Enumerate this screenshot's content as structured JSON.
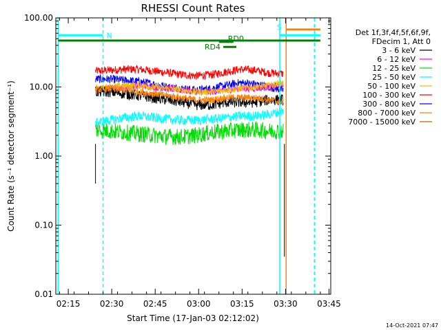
{
  "chart_data": {
    "type": "line",
    "title": "RHESSI Count Rates",
    "xlabel": "Start Time (17-Jan-03 02:12:02)",
    "ylabel": "Count Rate (s⁻¹ detector segment⁻¹)",
    "yscale": "log",
    "ylim": [
      0.01,
      100
    ],
    "xlim_minutes": [
      0,
      90
    ],
    "x_tick_labels": [
      "02:15",
      "02:30",
      "02:45",
      "03:00",
      "03:15",
      "03:30",
      "03:45"
    ],
    "x_tick_minutes": [
      3,
      18,
      33,
      48,
      63,
      78,
      93
    ],
    "y_tick_labels": [
      "0.01",
      "0.10",
      "1.00",
      "10.00",
      "100.00"
    ],
    "y_tick_values": [
      0.01,
      0.1,
      1,
      10,
      100
    ],
    "legend_header": [
      "Det 1f,3f,4f,5f,6f,9f,",
      "FDecim 1, Att 0"
    ],
    "legend": [
      {
        "label": "3 - 6 keV",
        "color": "#000000"
      },
      {
        "label": "6 - 12 keV",
        "color": "#ff00ff"
      },
      {
        "label": "12 - 25 keV",
        "color": "#00dd00"
      },
      {
        "label": "25 - 50 keV",
        "color": "#00ffff"
      },
      {
        "label": "50 - 100 keV",
        "color": "#f0c000"
      },
      {
        "label": "100 - 300 keV",
        "color": "#ff0000"
      },
      {
        "label": "300 - 800 keV",
        "color": "#0000ff"
      },
      {
        "label": "800 - 7000 keV",
        "color": "#ff8000"
      },
      {
        "label": "7000 - 15000 keV",
        "color": "#c06000"
      }
    ],
    "data_start_minute": 12.4,
    "data_end_minute": 77.3,
    "series": [
      {
        "name": "100 - 300 keV",
        "color": "#ff0000",
        "levels": [
          17,
          17.5,
          18,
          18,
          17,
          16,
          15,
          14.5,
          15,
          16.5,
          18,
          17.5,
          16,
          15.5
        ],
        "noise": 0.06
      },
      {
        "name": "300 - 800 keV",
        "color": "#0000ff",
        "levels": [
          13,
          13,
          12.5,
          12,
          11,
          10,
          9.5,
          9,
          9.5,
          10.5,
          11.5,
          11,
          10,
          9
        ],
        "noise": 0.06
      },
      {
        "name": "6 - 12 keV",
        "color": "#ff00ff",
        "levels": [
          9,
          9.5,
          10,
          10.5,
          10,
          9.5,
          9,
          8.5,
          8.5,
          9,
          9.5,
          9.5,
          10,
          11
        ],
        "noise": 0.05
      },
      {
        "name": "50 - 100 keV",
        "color": "#f0c000",
        "levels": [
          9.5,
          10,
          10.5,
          10.5,
          10,
          9.5,
          9,
          8.5,
          8.5,
          9,
          9.5,
          10,
          10.5,
          11.5
        ],
        "noise": 0.05
      },
      {
        "name": "3 - 6 keV",
        "color": "#000000",
        "levels": [
          8.5,
          8.5,
          8,
          7.5,
          7,
          6.5,
          6,
          5.5,
          5.5,
          6,
          6,
          6,
          6.5,
          6.5
        ],
        "noise": 0.08
      },
      {
        "name": "800 - 7000 keV",
        "color": "#ff8000",
        "levels": [
          9,
          9.5,
          9,
          8.5,
          8,
          7.5,
          7,
          6.5,
          6.5,
          7,
          7,
          7,
          6.5,
          6
        ],
        "noise": 0.05
      },
      {
        "name": "25 - 50 keV",
        "color": "#00ffff",
        "levels": [
          3,
          3.3,
          3.6,
          3.8,
          3.6,
          3.4,
          3.3,
          3.3,
          3.4,
          3.6,
          3.8,
          3.8,
          4,
          4.5
        ],
        "noise": 0.07
      },
      {
        "name": "12 - 25 keV",
        "color": "#00dd00",
        "levels": [
          2.4,
          2.3,
          2.2,
          2.1,
          2,
          1.9,
          1.9,
          2,
          2.2,
          2.3,
          2.4,
          2.4,
          2.3,
          2.3
        ],
        "noise": 0.12
      }
    ],
    "flag_segments": [
      {
        "label": "N",
        "color": "#00ffff",
        "y": 56,
        "x_start": -0.5,
        "x_end": 15
      },
      {
        "label": "",
        "color": "#008000",
        "y": 47,
        "x_start": -0.5,
        "x_end": 90
      },
      {
        "label": "RD0",
        "color": "#008000",
        "y": 45,
        "x_start": 55,
        "x_end": 60
      },
      {
        "label": "RD4",
        "color": "#008000",
        "y": 38,
        "x_start": 56.5,
        "x_end": 61
      },
      {
        "label": "S",
        "color": "#00ffff",
        "y": 56,
        "x_start": 76,
        "x_end": 90
      },
      {
        "label": "",
        "color": "#ff8000",
        "y": 68,
        "x_start": 78.2,
        "x_end": 90
      }
    ],
    "vertical_lines": [
      {
        "x": -0.5,
        "color": "#00ffff",
        "style": "solid"
      },
      {
        "x": 15,
        "color": "#00ffff",
        "style": "dashed"
      },
      {
        "x": 76,
        "color": "#00ffff",
        "style": "solid"
      },
      {
        "x": 78.2,
        "color": "#ff8000",
        "style": "solid"
      },
      {
        "x": 88,
        "color": "#ff8000",
        "style": "dashed"
      },
      {
        "x": 88,
        "color": "#00ffff",
        "style": "dashed"
      }
    ]
  },
  "footer": {
    "date": "14-Oct-2021 07:47"
  }
}
